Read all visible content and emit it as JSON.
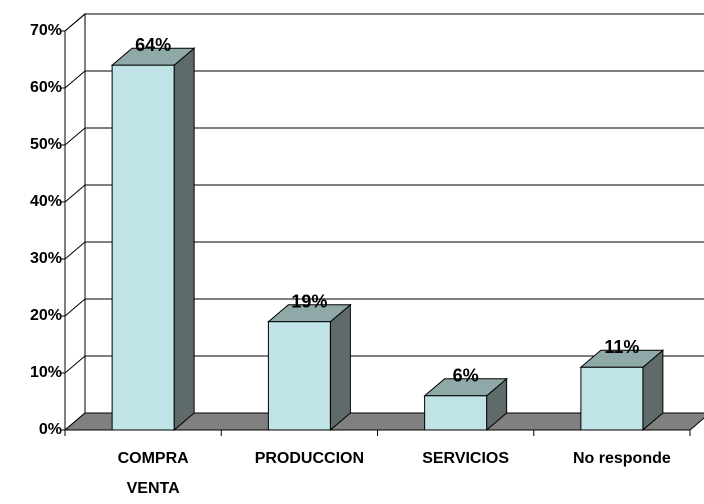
{
  "chart_data": {
    "type": "bar3d",
    "categories": [
      "COMPRA VENTA",
      "PRODUCCION",
      "SERVICIOS",
      "No responde"
    ],
    "values": [
      64,
      19,
      6,
      11
    ],
    "value_labels": [
      "64%",
      "19%",
      "6%",
      "11%"
    ],
    "color": "#bfe3e6",
    "ylim": [
      0,
      70
    ],
    "yticks": [
      {
        "value": 0,
        "label": "0%"
      },
      {
        "value": 10,
        "label": "10%"
      },
      {
        "value": 20,
        "label": "20%"
      },
      {
        "value": 30,
        "label": "30%"
      },
      {
        "value": 40,
        "label": "40%"
      },
      {
        "value": 50,
        "label": "50%"
      },
      {
        "value": 60,
        "label": "60%"
      },
      {
        "value": 70,
        "label": "70%"
      }
    ],
    "grid": true
  }
}
